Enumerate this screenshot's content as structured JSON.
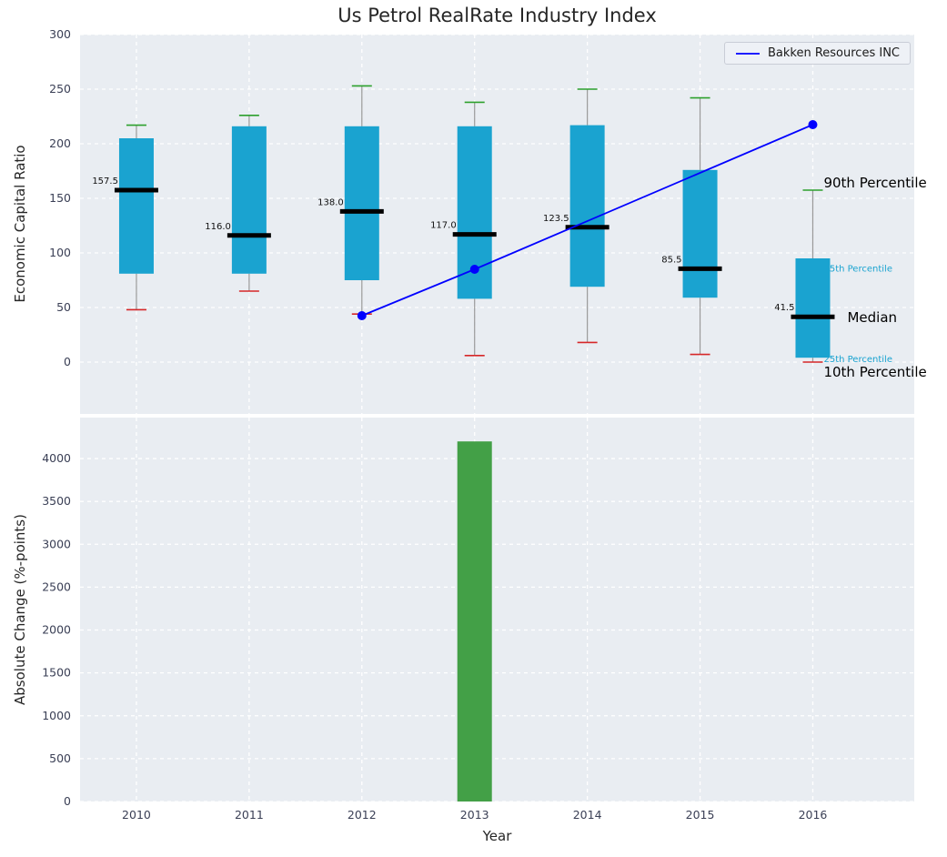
{
  "figure": {
    "title": "Us Petrol RealRate Industry Index",
    "top_ylabel": "Economic Capital Ratio",
    "bottom_ylabel": "Absolute Change (%-points)",
    "xlabel": "Year",
    "legend_label": "Bakken Resources INC"
  },
  "colors": {
    "plot_bg": "#e9edf2",
    "grid": "#ffffff",
    "box_fill": "#1aa3d0",
    "whisker": "#999999",
    "cap_high": "#2ca02c",
    "cap_low": "#d62728",
    "median": "#000000",
    "series_line": "#0000ff",
    "bar": "#43a047",
    "tick_text": "#3a3f55",
    "annotation_small": "#1aa3d0",
    "annotation_large": "#000000"
  },
  "chart_data": [
    {
      "type": "boxplot",
      "title": "Us Petrol RealRate Industry Index",
      "xlabel": "Year",
      "ylabel": "Economic Capital Ratio",
      "xlim": [
        2009.5,
        2016.9
      ],
      "ylim": [
        -47.5,
        300
      ],
      "yticks": [
        0,
        50,
        100,
        150,
        200,
        250,
        300
      ],
      "grid": true,
      "categories": [
        2010,
        2011,
        2012,
        2013,
        2014,
        2015,
        2016
      ],
      "boxes": [
        {
          "year": 2010,
          "p10": 48,
          "p25": 81,
          "median": 157.5,
          "p75": 205,
          "p90": 217,
          "label": "157.5"
        },
        {
          "year": 2011,
          "p10": 65,
          "p25": 81,
          "median": 116.0,
          "p75": 216,
          "p90": 226,
          "label": "116.0"
        },
        {
          "year": 2012,
          "p10": 44,
          "p25": 75,
          "median": 138.0,
          "p75": 216,
          "p90": 253,
          "label": "138.0"
        },
        {
          "year": 2013,
          "p10": 6,
          "p25": 58,
          "median": 117.0,
          "p75": 216,
          "p90": 238,
          "label": "117.0"
        },
        {
          "year": 2014,
          "p10": 18,
          "p25": 69,
          "median": 123.5,
          "p75": 217,
          "p90": 250,
          "label": "123.5"
        },
        {
          "year": 2015,
          "p10": 7,
          "p25": 59,
          "median": 85.5,
          "p75": 176,
          "p90": 242,
          "label": "85.5"
        },
        {
          "year": 2016,
          "p10": 0,
          "p25": 4,
          "median": 41.5,
          "p75": 95,
          "p90": 157.5,
          "label": "41.5"
        }
      ],
      "series": [
        {
          "name": "Bakken Resources INC",
          "points": [
            [
              2012,
              42.5
            ],
            [
              2013,
              85
            ],
            [
              2016,
              217.5
            ]
          ]
        }
      ],
      "right_labels": [
        {
          "text": "90th Percentile",
          "y": 164,
          "size": 15,
          "color": "#000000",
          "dx": 12
        },
        {
          "text": "75th Percentile",
          "y": 87,
          "size": 10,
          "color": "#1aa3d0",
          "dx": 12
        },
        {
          "text": "Median",
          "y": 41,
          "size": 15,
          "color": "#000000",
          "dx": 38
        },
        {
          "text": "25th Percentile",
          "y": 4,
          "size": 10,
          "color": "#1aa3d0",
          "dx": 12
        },
        {
          "text": "10th Percentile",
          "y": -9,
          "size": 15,
          "color": "#000000",
          "dx": 12
        }
      ],
      "legend": {
        "label": "Bakken Resources INC",
        "position": "upper right"
      }
    },
    {
      "type": "bar",
      "xlabel": "Year",
      "ylabel": "Absolute Change (%-points)",
      "categories": [
        2010,
        2011,
        2012,
        2013,
        2014,
        2015,
        2016
      ],
      "values": [
        null,
        null,
        null,
        4200,
        null,
        null,
        null
      ],
      "ylim": [
        0,
        4478
      ],
      "yticks": [
        0,
        500,
        1000,
        1500,
        2000,
        2500,
        3000,
        3500,
        4000
      ],
      "grid": true
    }
  ]
}
